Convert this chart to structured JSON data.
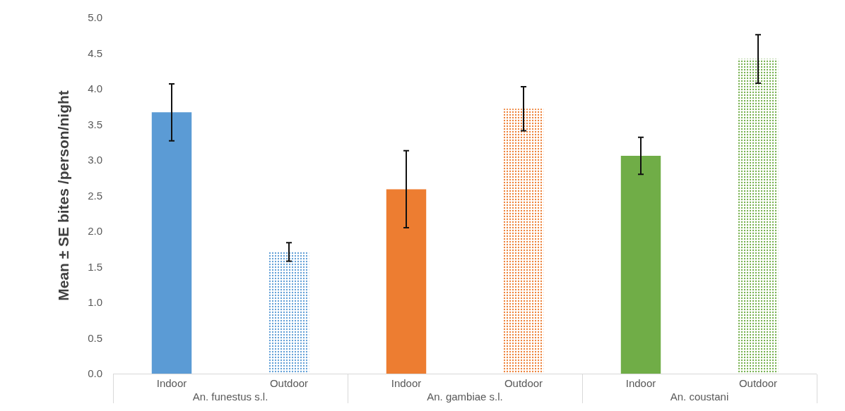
{
  "chart_data": {
    "type": "bar",
    "categories": [
      "Indoor",
      "Outdoor",
      "Indoor",
      "Outdoor",
      "Indoor",
      "Outdoor"
    ],
    "values": [
      3.67,
      1.71,
      2.59,
      3.72,
      3.06,
      4.42
    ],
    "errors": [
      0.4,
      0.13,
      0.54,
      0.31,
      0.26,
      0.34
    ],
    "colors": [
      "#5b9bd5",
      "#5b9bd5",
      "#ed7d31",
      "#ed7d31",
      "#70ad47",
      "#70ad47"
    ],
    "ylabel": "Mean ± SE bites /person/night",
    "annotations": [
      "An. funestus s.l.",
      "An. gambiae s.l.",
      "An. coustani"
    ],
    "ylim": [
      0,
      5
    ],
    "yticks": [
      {
        "value": 0,
        "label": "0.0"
      },
      0.5,
      {
        "value": 1,
        "label": "1.0"
      },
      1.5,
      {
        "value": 2,
        "label": "2.0"
      },
      2.5,
      {
        "value": 3,
        "label": "3.0"
      },
      3.5,
      {
        "value": 4,
        "label": "4.0"
      },
      4.5,
      {
        "value": 5,
        "label": "5.0"
      }
    ],
    "grid": false
  }
}
